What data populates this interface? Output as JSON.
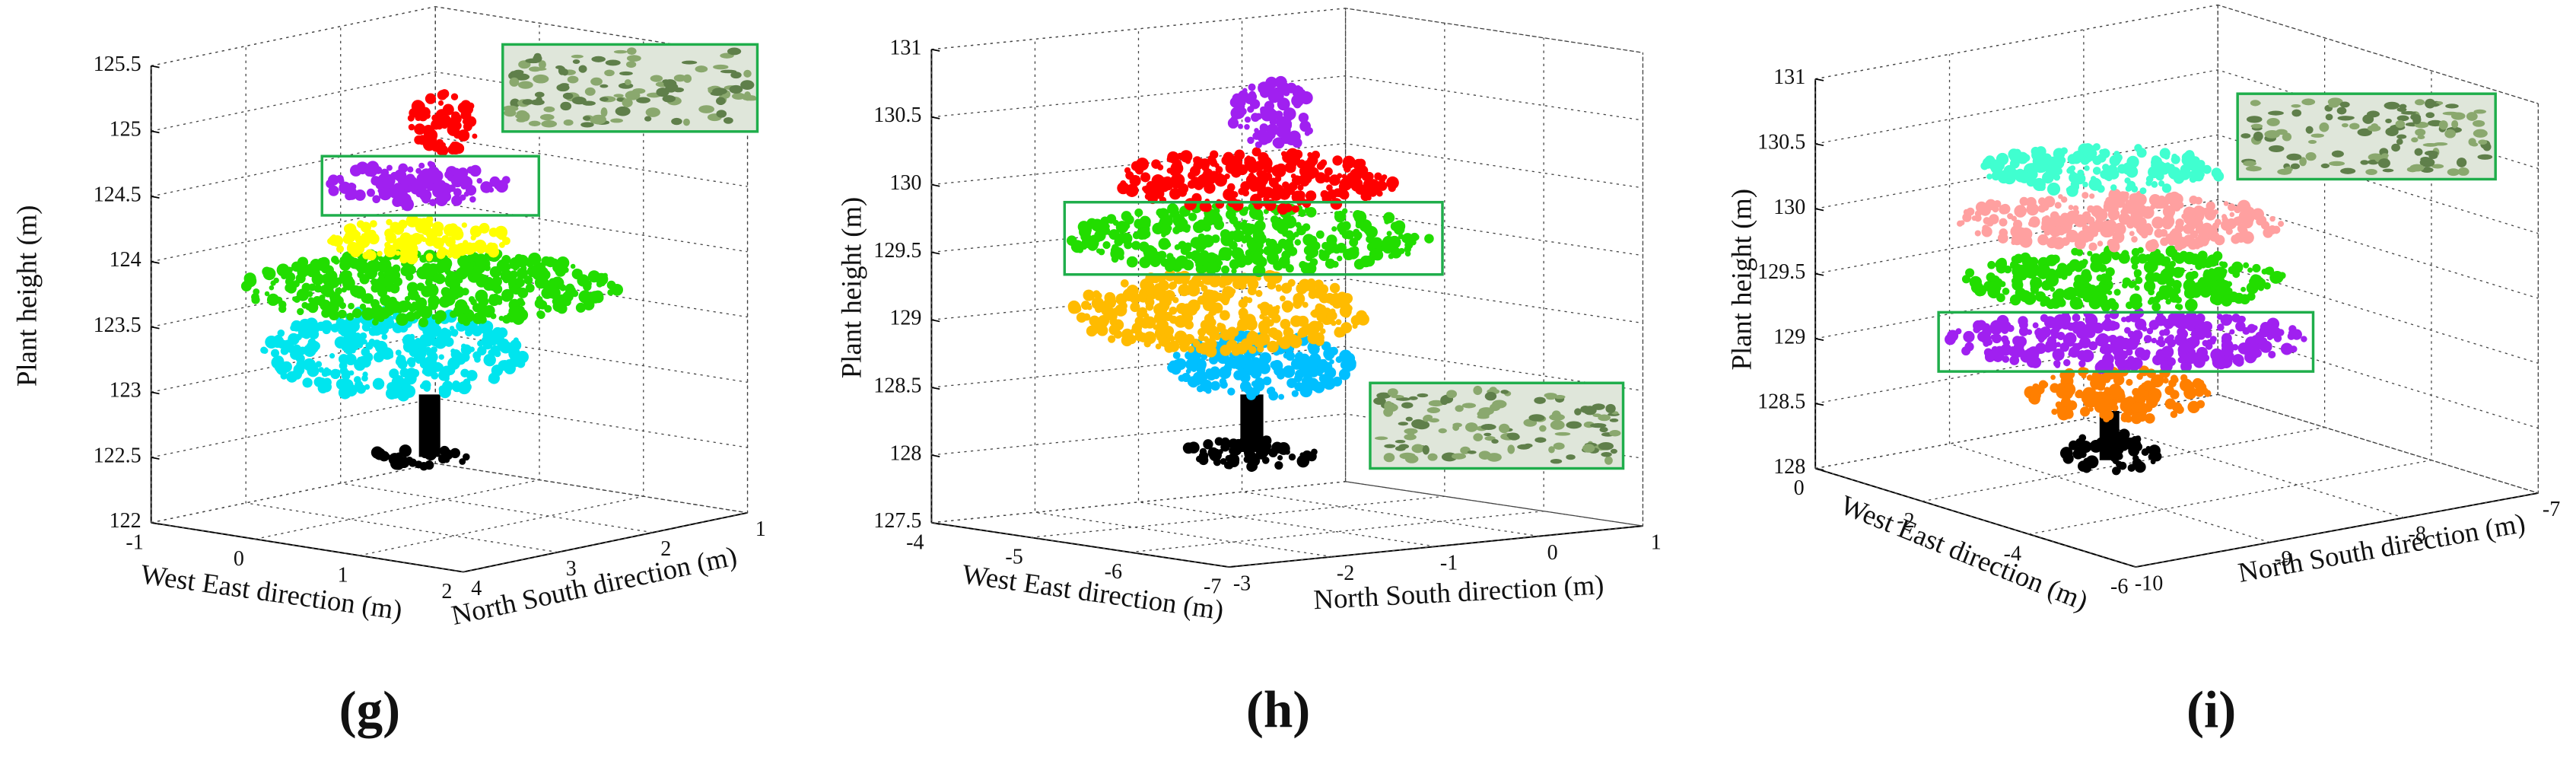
{
  "chart_data": [
    {
      "type": "scatter3d",
      "panel_label": "(g)",
      "zlabel": "Plant height (m)",
      "xlabel": "West East direction (m)",
      "ylabel": "North South direction (m)",
      "zlim": [
        122,
        125.5
      ],
      "zticks": [
        122,
        122.5,
        123,
        123.5,
        124,
        124.5,
        125,
        125.5
      ],
      "xlim": [
        -1,
        2
      ],
      "xticks": [
        -1,
        0,
        1,
        2
      ],
      "ylim": [
        4,
        1
      ],
      "yticks": [
        4,
        3,
        2,
        1
      ],
      "grid": true
    },
    {
      "type": "scatter3d",
      "panel_label": "(h)",
      "zlabel": "Plant height (m)",
      "xlabel": "West East direction (m)",
      "ylabel": "North South direction (m)",
      "zlim": [
        127.5,
        131
      ],
      "zticks": [
        127.5,
        128,
        128.5,
        129,
        129.5,
        130,
        130.5,
        131
      ],
      "xlim": [
        -4,
        -7
      ],
      "xticks": [
        -4,
        -5,
        -6,
        -7
      ],
      "ylim": [
        -3,
        1
      ],
      "yticks": [
        -3,
        -2,
        -1,
        0,
        1
      ],
      "grid": true
    },
    {
      "type": "scatter3d",
      "panel_label": "(i)",
      "zlabel": "Plant height (m)",
      "xlabel": "West East direction (m)",
      "ylabel": "North South direction (m)",
      "zlim": [
        128,
        131
      ],
      "zticks": [
        128,
        128.5,
        129,
        129.5,
        130,
        130.5,
        131
      ],
      "xlim": [
        0,
        -6
      ],
      "xticks": [
        0,
        -2,
        -4,
        -6
      ],
      "ylim": [
        -10,
        -7
      ],
      "yticks": [
        -10,
        -9,
        -8,
        -7
      ],
      "grid": true
    }
  ]
}
